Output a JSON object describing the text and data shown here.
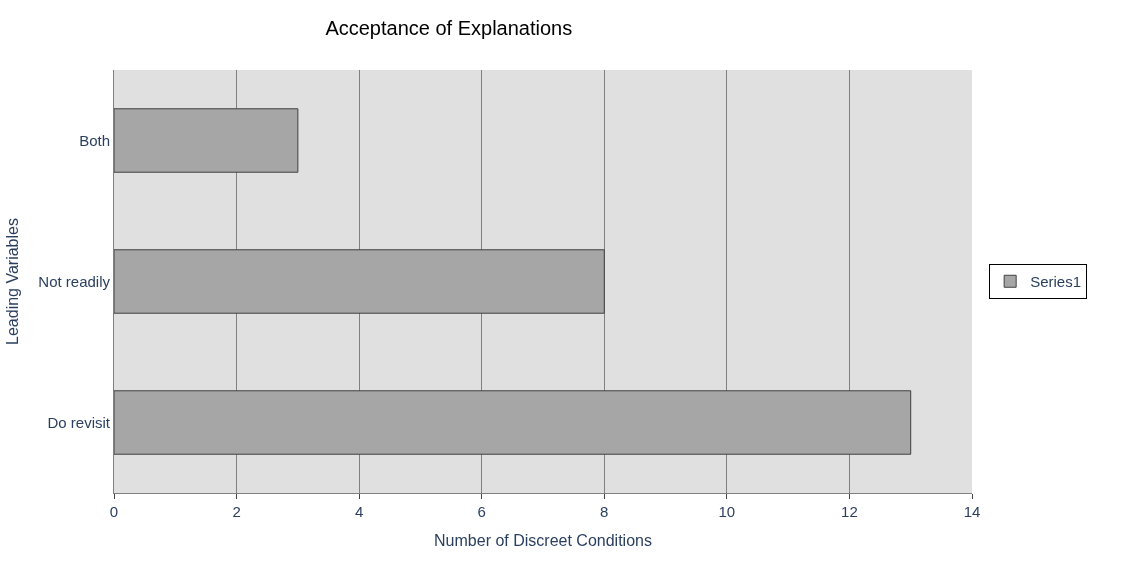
{
  "chart_data": {
    "type": "bar",
    "orientation": "horizontal",
    "title": "Acceptance of Explanations",
    "xlabel": "Number of Discreet Conditions",
    "ylabel": "Leading Variables",
    "categories": [
      "Both",
      "Not readily",
      "Do revisit"
    ],
    "series": [
      {
        "name": "Series1",
        "color": "#a6a6a6",
        "values": [
          3,
          8,
          13
        ]
      }
    ],
    "xlim": [
      0,
      14
    ],
    "xticks": [
      0,
      2,
      4,
      6,
      8,
      10,
      12,
      14
    ],
    "grid": "x",
    "legend": "right"
  }
}
